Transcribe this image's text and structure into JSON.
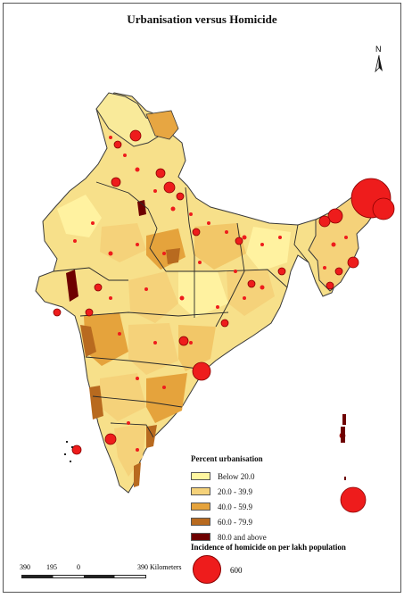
{
  "title": "Urbanisation versus Homicide",
  "north_label": "N",
  "legend": {
    "title": "Percent urbanisation",
    "items": [
      {
        "label": "Below 20.0",
        "color": "#fff6a0"
      },
      {
        "label": "20.0 - 39.9",
        "color": "#f5d27a"
      },
      {
        "label": "40.0 - 59.9",
        "color": "#e5a33c"
      },
      {
        "label": "60.0 - 79.9",
        "color": "#b86a1f"
      },
      {
        "label": "80.0 and above",
        "color": "#6e0000"
      }
    ]
  },
  "homicide_legend": {
    "title": "Incidence of homicide on per lakh population",
    "value": "600",
    "color": "#ee1c1c"
  },
  "scale": {
    "labels": [
      "390",
      "195",
      "0",
      "390 Kilometers"
    ]
  }
}
